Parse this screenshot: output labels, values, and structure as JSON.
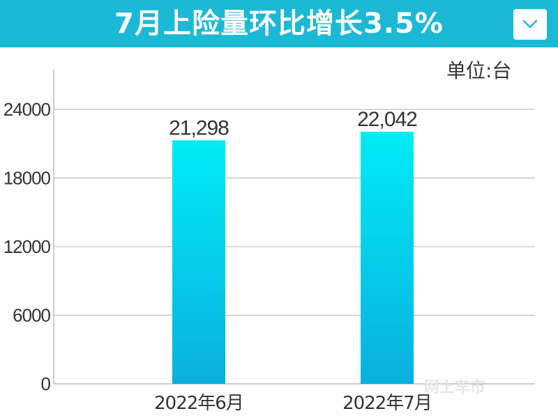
{
  "header": {
    "title": "7月上险量环比增长3.5%",
    "dropdown_icon": "chevron-down-icon",
    "background_color": "#1cb9d6"
  },
  "unit_label": "单位:台",
  "watermark": "网上车市",
  "chart_data": {
    "type": "bar",
    "title": "7月上险量环比增长3.5%",
    "unit": "单位:台",
    "categories": [
      "2022年6月",
      "2022年7月"
    ],
    "values": [
      21298,
      22042
    ],
    "value_labels": [
      "21,298",
      "22,042"
    ],
    "ylim": [
      0,
      27000
    ],
    "yticks": [
      0,
      6000,
      12000,
      18000,
      24000
    ],
    "ytick_labels": [
      "0",
      "6000",
      "12000",
      "18000",
      "24000"
    ],
    "xlabel": "",
    "ylabel": "",
    "grid": true,
    "bar_colors": {
      "top": "#00ecf4",
      "bottom": "#0ab0df"
    }
  }
}
